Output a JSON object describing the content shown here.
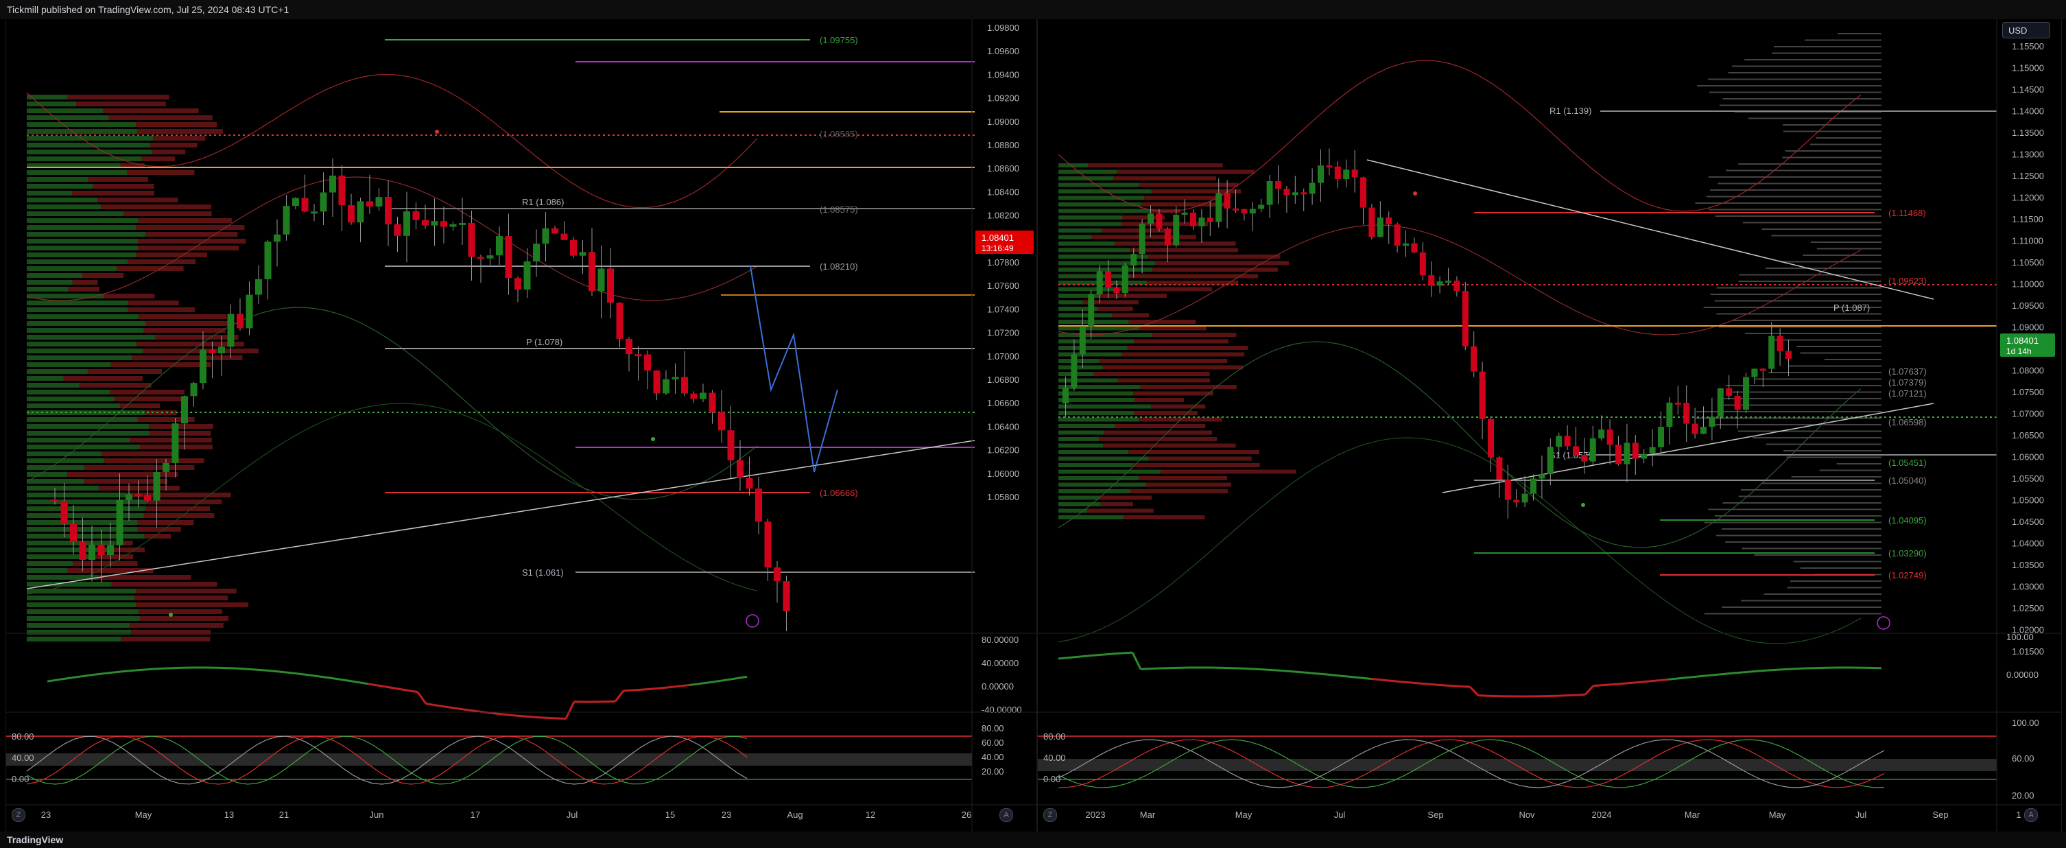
{
  "header": {
    "publisher": "Tickmill published on TradingView.com, Jul 25, 2024 08:43 UTC+1"
  },
  "footer": {
    "logo": "TradingView"
  },
  "left": {
    "price_axis": [
      "1.09800",
      "1.09600",
      "1.09400",
      "1.09200",
      "1.09000",
      "1.08800",
      "1.08600",
      "1.08400",
      "1.08200",
      "1.08000",
      "1.07800",
      "1.07600",
      "1.07400",
      "1.07200",
      "1.07000",
      "1.06800",
      "1.06600",
      "1.06400",
      "1.06200",
      "1.06000",
      "1.05800"
    ],
    "current_price": "1.08401",
    "countdown": "13:16:49",
    "levels": {
      "l09755": "(1.09755)",
      "l08585": "(1.08585)",
      "r1": "R1 (1.086)",
      "l08575": "(1.08575)",
      "l08210": "(1.08210)",
      "p": "P (1.078)",
      "l06666": "(1.06666)",
      "s1": "S1 (1.061)"
    },
    "osc1_axis": [
      "80.00000",
      "40.00000",
      "0.00000",
      "-40.00000"
    ],
    "osc2_axis_right": [
      "80.00",
      "60.00",
      "40.00",
      "20.00"
    ],
    "osc2_axis_left": [
      "80.00",
      "40.00",
      "0.00"
    ],
    "time_axis": [
      "23",
      "May",
      "13",
      "21",
      "Jun",
      "17",
      "Jul",
      "15",
      "23",
      "Aug",
      "12",
      "26"
    ]
  },
  "right": {
    "currency": "USD",
    "price_axis": [
      "1.15500",
      "1.15000",
      "1.14500",
      "1.14000",
      "1.13500",
      "1.13000",
      "1.12500",
      "1.12000",
      "1.11500",
      "1.11000",
      "1.10500",
      "1.10000",
      "1.09500",
      "1.09000",
      "1.08500",
      "1.08000",
      "1.07500",
      "1.07000",
      "1.06500",
      "1.06000",
      "1.05500",
      "1.05000",
      "1.04500",
      "1.04000",
      "1.03500",
      "1.03000",
      "1.02500",
      "1.02000",
      "1.01500"
    ],
    "current_price": "1.08401",
    "countdown": "1d 14h",
    "levels": {
      "r1": "R1 (1.139)",
      "l11468": "(1.11468)",
      "l09623": "(1.09623)",
      "p": "P (1.087)",
      "l07637": "(1.07637)",
      "l07379": "(1.07379)",
      "l07121": "(1.07121)",
      "l06598": "(1.06598)",
      "s1": "S1 (1.057)",
      "l05451": "(1.05451)",
      "l05040": "(1.05040)",
      "l04095": "(1.04095)",
      "l03290": "(1.03290)",
      "l02749": "(1.02749)"
    },
    "osc1_axis": [
      "100.00",
      "0.00000"
    ],
    "osc2_axis_right": [
      "100.00",
      "60.00",
      "20.00"
    ],
    "osc2_axis_left": [
      "80.00",
      "40.00",
      "0.00"
    ],
    "time_axis": [
      "2023",
      "Mar",
      "May",
      "Jul",
      "Sep",
      "Nov",
      "2024",
      "Mar",
      "May",
      "Jul",
      "Sep",
      "1"
    ]
  },
  "colors": {
    "up": "#1e7d1e",
    "down": "#d0021b",
    "price_label": "#e00000",
    "price_label_right": "#1b8e2e",
    "orange": "#f0a020",
    "purple": "#b030d0",
    "white_line": "#c8c8c8",
    "green_line": "#2ea043",
    "red_line": "#e03030",
    "blue_projection": "#3a6fd8"
  },
  "icons": {
    "corner": "settings-gear-icon",
    "lightning": "lightning-icon"
  }
}
